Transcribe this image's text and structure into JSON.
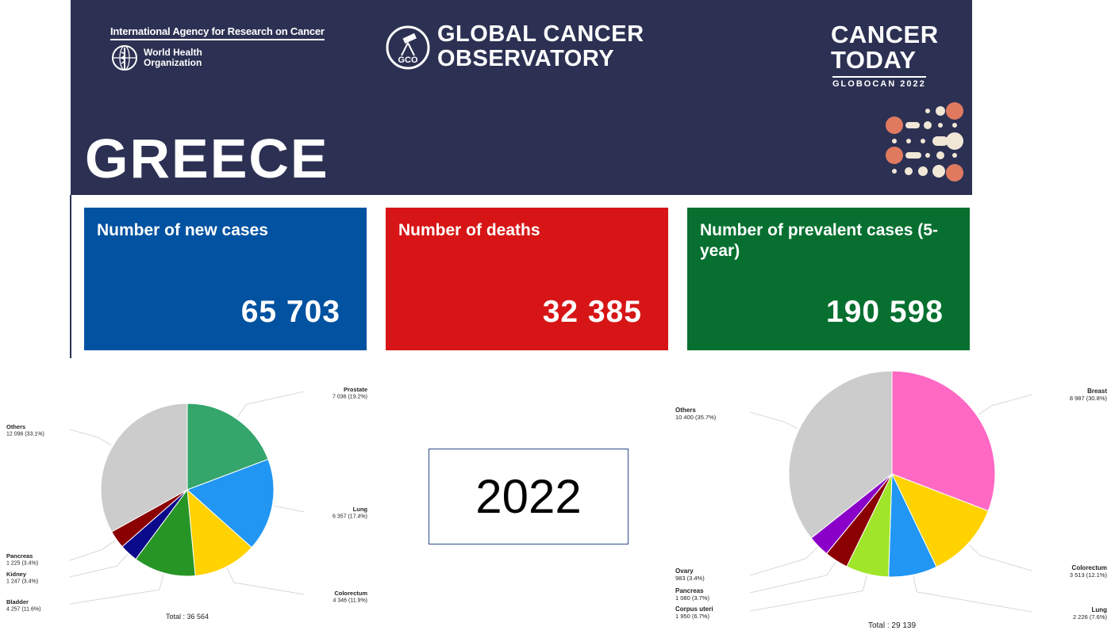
{
  "header": {
    "iarc": "International Agency for Research on Cancer",
    "who_line1": "World Health",
    "who_line2": "Organization",
    "gco_logo_text": "GCO",
    "gco_line1": "GLOBAL CANCER",
    "gco_line2": "OBSERVATORY",
    "ct_line1": "CANCER",
    "ct_line2": "TODAY",
    "ct_sub": "GLOBOCAN 2022",
    "country": "GREECE",
    "colors": {
      "banner": "#2c3153"
    }
  },
  "cards": {
    "new_cases": {
      "label": "Number of new cases",
      "value": "65 703",
      "color": "#0152a1"
    },
    "deaths": {
      "label": "Number of deaths",
      "value": "32 385",
      "color": "#d71516"
    },
    "prevalent": {
      "label": "Number of prevalent cases (5-year)",
      "value": "190 598",
      "color": "#077030"
    }
  },
  "year": "2022",
  "chart_data": [
    {
      "type": "pie",
      "total_label": "Total : 36 564",
      "slices": [
        {
          "label": "Prostate",
          "value": 7036,
          "display": "7 036 (19.2%)",
          "color": "#34a56b"
        },
        {
          "label": "Lung",
          "value": 6357,
          "display": "6 357 (17.4%)",
          "color": "#2196f3"
        },
        {
          "label": "Colorectum",
          "value": 4346,
          "display": "4 346 (11.9%)",
          "color": "#ffd200"
        },
        {
          "label": "Bladder",
          "value": 4257,
          "display": "4 257 (11.6%)",
          "color": "#279526"
        },
        {
          "label": "Kidney",
          "value": 1247,
          "display": "1 247 (3.4%)",
          "color": "#0b0a8a"
        },
        {
          "label": "Pancreas",
          "value": 1225,
          "display": "1 225 (3.4%)",
          "color": "#8b0000"
        },
        {
          "label": "Others",
          "value": 12096,
          "display": "12 096 (33.1%)",
          "color": "#cccccc"
        }
      ]
    },
    {
      "type": "pie",
      "total_label": "Total : 29 139",
      "slices": [
        {
          "label": "Breast",
          "value": 8987,
          "display": "8 987 (30.8%)",
          "color": "#ff69c4"
        },
        {
          "label": "Colorectum",
          "value": 3513,
          "display": "3 513 (12.1%)",
          "color": "#ffd200"
        },
        {
          "label": "Lung",
          "value": 2226,
          "display": "2 226 (7.6%)",
          "color": "#2196f3"
        },
        {
          "label": "Corpus uteri",
          "value": 1950,
          "display": "1 950 (6.7%)",
          "color": "#a0e52a"
        },
        {
          "label": "Pancreas",
          "value": 1080,
          "display": "1 080 (3.7%)",
          "color": "#8b0000"
        },
        {
          "label": "Ovary",
          "value": 983,
          "display": "983 (3.4%)",
          "color": "#8a00c9"
        },
        {
          "label": "Others",
          "value": 10400,
          "display": "10 400 (35.7%)",
          "color": "#cccccc"
        }
      ]
    }
  ]
}
